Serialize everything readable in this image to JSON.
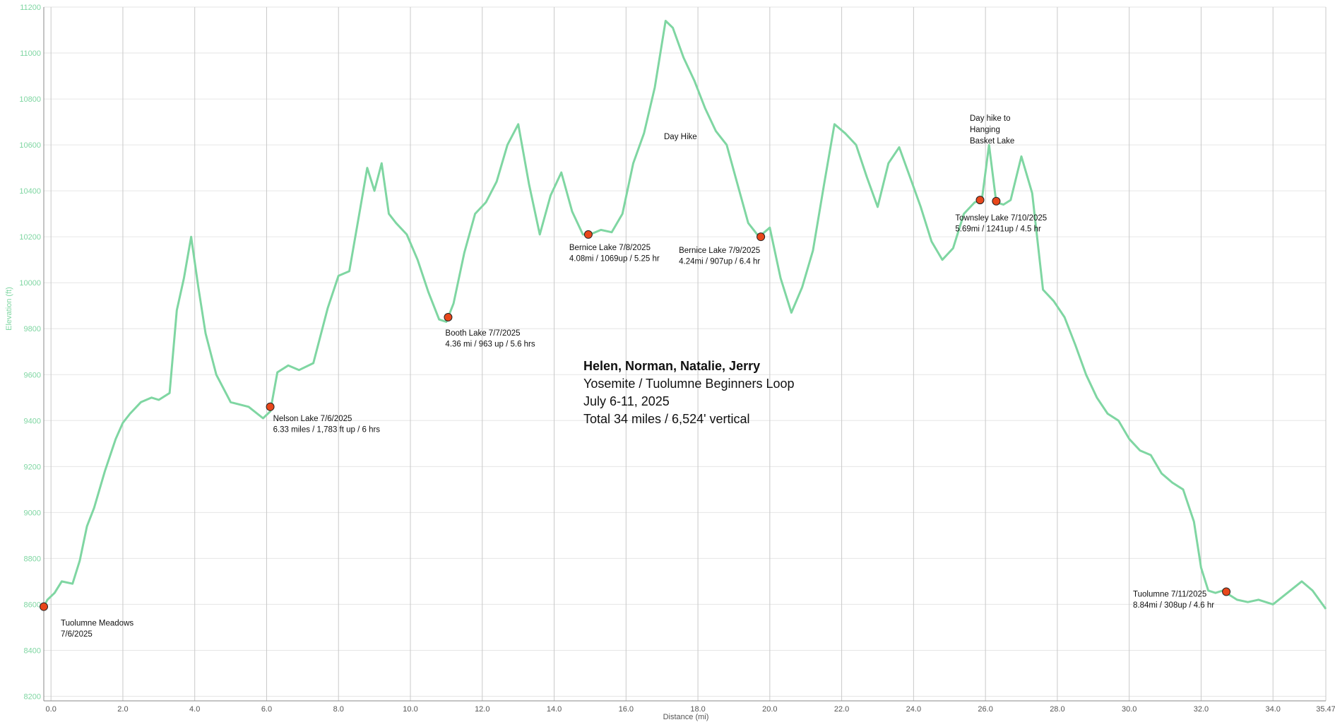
{
  "chart_data": {
    "type": "line",
    "xlabel": "Distance (mi)",
    "ylabel": "Elevation (ft)",
    "xlim": [
      -0.2,
      35.47
    ],
    "ylim": [
      8180,
      11200
    ],
    "x_ticks": [
      0,
      2,
      4,
      6,
      8,
      10,
      12,
      14,
      16,
      18,
      20,
      22,
      24,
      26,
      28,
      30,
      32,
      34,
      35.47
    ],
    "x_tick_labels": [
      "0.0",
      "2.0",
      "4.0",
      "6.0",
      "8.0",
      "10.0",
      "12.0",
      "14.0",
      "16.0",
      "18.0",
      "20.0",
      "22.0",
      "24.0",
      "26.0",
      "28.0",
      "30.0",
      "32.0",
      "34.0",
      "35.47"
    ],
    "y_ticks": [
      8200,
      8400,
      8600,
      8800,
      9000,
      9200,
      9400,
      9600,
      9800,
      10000,
      10200,
      10400,
      10600,
      10800,
      11000,
      11200
    ],
    "grid": true,
    "line_color": "#7fd6a2",
    "marker_color": "#e8471b",
    "series": [
      {
        "x": [
          -0.2,
          -0.1,
          0.1,
          0.3,
          0.6,
          0.8,
          1.0,
          1.2,
          1.5,
          1.8,
          2.0,
          2.2,
          2.5,
          2.8,
          3.0,
          3.3,
          3.5,
          3.7,
          3.9,
          4.1,
          4.3,
          4.6,
          5.0,
          5.5,
          5.9,
          6.1,
          6.3,
          6.6,
          6.9,
          7.3,
          7.7,
          8.0,
          8.3,
          8.6,
          8.8,
          9.0,
          9.2,
          9.4,
          9.6,
          9.9,
          10.2,
          10.5,
          10.8,
          11.0,
          11.2,
          11.5,
          11.8,
          12.1,
          12.4,
          12.7,
          13.0,
          13.3,
          13.6,
          13.9,
          14.2,
          14.5,
          14.8,
          15.0,
          15.3,
          15.6,
          15.9,
          16.2,
          16.5,
          16.8,
          17.1,
          17.3,
          17.6,
          17.9,
          18.2,
          18.5,
          18.8,
          19.1,
          19.4,
          19.7,
          20.0,
          20.3,
          20.6,
          20.9,
          21.2,
          21.5,
          21.8,
          22.1,
          22.4,
          22.7,
          23.0,
          23.3,
          23.6,
          23.9,
          24.2,
          24.5,
          24.8,
          25.1,
          25.4,
          25.7,
          25.9,
          26.1,
          26.3,
          26.5,
          26.7,
          27.0,
          27.3,
          27.6,
          27.9,
          28.2,
          28.5,
          28.8,
          29.1,
          29.4,
          29.7,
          30.0,
          30.3,
          30.6,
          30.9,
          31.2,
          31.5,
          31.8,
          32.0,
          32.2,
          32.4,
          32.6,
          32.8,
          33.0,
          33.3,
          33.6,
          34.0,
          34.4,
          34.8,
          35.1,
          35.47
        ],
        "y": [
          8590,
          8620,
          8650,
          8700,
          8690,
          8790,
          8940,
          9020,
          9180,
          9320,
          9390,
          9430,
          9480,
          9500,
          9490,
          9520,
          9880,
          10020,
          10200,
          9980,
          9780,
          9600,
          9480,
          9460,
          9410,
          9440,
          9610,
          9640,
          9620,
          9650,
          9890,
          10030,
          10050,
          10320,
          10500,
          10400,
          10520,
          10300,
          10260,
          10210,
          10100,
          9960,
          9840,
          9830,
          9910,
          10130,
          10300,
          10350,
          10440,
          10600,
          10690,
          10430,
          10210,
          10380,
          10480,
          10310,
          10210,
          10210,
          10230,
          10220,
          10300,
          10520,
          10650,
          10850,
          11140,
          11110,
          10980,
          10880,
          10760,
          10660,
          10600,
          10430,
          10260,
          10200,
          10240,
          10020,
          9870,
          9980,
          10140,
          10420,
          10690,
          10650,
          10600,
          10460,
          10330,
          10520,
          10590,
          10460,
          10330,
          10180,
          10100,
          10150,
          10300,
          10350,
          10360,
          10600,
          10350,
          10340,
          10360,
          10550,
          10390,
          9970,
          9920,
          9850,
          9730,
          9600,
          9500,
          9430,
          9400,
          9320,
          9270,
          9250,
          9170,
          9130,
          9100,
          8960,
          8760,
          8660,
          8650,
          8660,
          8640,
          8620,
          8610,
          8620,
          8600,
          8650,
          8700,
          8660,
          8580
        ]
      }
    ],
    "waypoints": [
      {
        "x": -0.2,
        "y": 8590,
        "lines": [
          "Tuolumne Meadows",
          "7/6/2025"
        ]
      },
      {
        "x": 6.1,
        "y": 9460,
        "lines": [
          "Nelson Lake 7/6/2025",
          "6.33 miles / 1,783 ft up / 6 hrs"
        ]
      },
      {
        "x": 11.05,
        "y": 9850,
        "lines": [
          "Booth Lake 7/7/2025",
          "4.36 mi / 963 up / 5.6 hrs"
        ]
      },
      {
        "x": 14.95,
        "y": 10210,
        "lines": [
          "Bernice Lake 7/8/2025",
          "4.08mi / 1069up / 5.25 hr"
        ]
      },
      {
        "x": 19.75,
        "y": 10200,
        "lines": [
          "Bernice Lake 7/9/2025",
          "4.24mi / 907up / 6.4 hr"
        ]
      },
      {
        "x": 25.85,
        "y": 10360,
        "lines": []
      },
      {
        "x": 26.3,
        "y": 10355,
        "lines": [
          "Townsley Lake 7/10/2025",
          "5.69mi / 1241up / 4.5 hr"
        ]
      },
      {
        "x": 32.7,
        "y": 8655,
        "lines": [
          "Tuolumne 7/11/2025",
          "8.84mi / 308up / 4.6 hr"
        ]
      }
    ],
    "annotations": [
      {
        "lines": [
          "Day Hike"
        ]
      },
      {
        "lines": [
          "Day hike to",
          "Hanging",
          "Basket Lake"
        ]
      }
    ],
    "info_box": {
      "title": "Helen, Norman, Natalie, Jerry",
      "lines": [
        "Yosemite / Tuolumne Beginners Loop",
        "July 6-11, 2025",
        "Total 34 miles / 6,524' vertical"
      ]
    }
  }
}
